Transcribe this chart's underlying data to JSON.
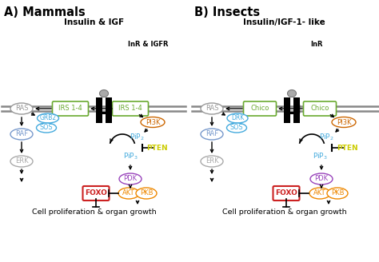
{
  "title_A": "A) Mammals",
  "title_B": "B) Insects",
  "ligand_A": "Insulin & IGF",
  "receptor_A": "InR & IGFR",
  "ligand_B": "Insulin/IGF-1- like",
  "receptor_B": "InR",
  "bottom_text": "Cell proliferation & organ growth",
  "colors": {
    "RAS": "#999999",
    "IRS": "#6aaa30",
    "GRB2": "#44aadd",
    "SOS": "#44aadd",
    "PI3K": "#cc6600",
    "PiP2": "#44aadd",
    "PTEN": "#cccc00",
    "PiP3": "#44aadd",
    "PDK": "#9944bb",
    "FOXO": "#cc2222",
    "AKT": "#ee8800",
    "PKB": "#ee8800",
    "RAF": "#7799cc",
    "ERK": "#aaaaaa",
    "Chico": "#6aaa30",
    "DRK": "#44aadd",
    "black": "#000000",
    "membrane": "#888888"
  },
  "figsize": [
    4.74,
    3.28
  ],
  "dpi": 100
}
